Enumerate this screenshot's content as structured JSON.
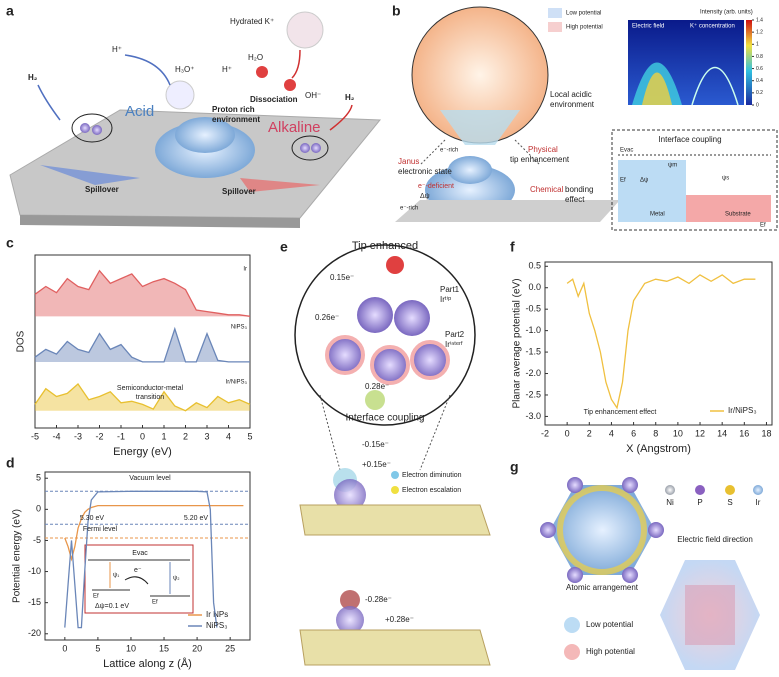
{
  "panels": {
    "labels": [
      "a",
      "b",
      "c",
      "d",
      "e",
      "f",
      "g"
    ],
    "a": {
      "texts": [
        "H₂",
        "H⁺",
        "H₃O⁺",
        "Hydrated K⁺",
        "H₂O",
        "H⁺",
        "Dissociation",
        "OH⁻",
        "Acid",
        "Proton rich",
        "environment",
        "Alkaline",
        "H₂",
        "Spillover",
        "Spillover"
      ]
    },
    "b": {
      "texts": [
        "Low potential",
        "High potential",
        "Local acidic",
        "environment",
        "Physical",
        "tip enhancement",
        "Janus",
        "electronic state",
        "e⁻-rich",
        "e⁻-deficient",
        "Δψ",
        "e⁻-rich",
        "Chemical",
        "bonding",
        "effect",
        "Interface coupling",
        "Metal",
        "Substrate",
        "Electric field",
        "K⁺ concentration",
        "Intensity (arb. units)",
        "Evac",
        "ψm",
        "ψs",
        "Δψ",
        "Ef",
        "Ef"
      ],
      "colorbar": {
        "lim": [
          0,
          1.4
        ],
        "ticks": [
          0,
          0.2,
          0.4,
          0.6,
          0.8,
          1.0,
          1.2,
          1.4
        ]
      }
    },
    "d_inset": {
      "texts": [
        "Evac",
        "e⁻",
        "Δψ=0.1 eV",
        "Ef",
        "Ef",
        "ψ₁",
        "ψ₂"
      ]
    },
    "e": {
      "texts": [
        "Tip enhanced",
        "0.15e⁻",
        "Part1",
        "Irᵗⁱᵖ",
        "0.26e⁻",
        "Part2",
        "Irⁱⁿᵗᵉʳᶠ",
        "0.28e⁻",
        "Interface coupling",
        "-0.15e⁻",
        "+0.15e⁻",
        "Electron diminution",
        "Electron escalation",
        "-0.28e⁻",
        "+0.28e⁻"
      ]
    },
    "g": {
      "texts": [
        "Ni",
        "P",
        "S",
        "Ir",
        "Electric field direction",
        "Atomic arrangement",
        "Low potential",
        "High potential"
      ]
    }
  },
  "chart_data": [
    {
      "type": "area",
      "xlabel": "Energy (eV)",
      "ylabel": "DOS",
      "x": [
        -5,
        -4.5,
        -4,
        -3.5,
        -3,
        -2.5,
        -2,
        -1.5,
        -1,
        -0.5,
        0,
        0.5,
        1,
        1.5,
        2,
        2.5,
        3,
        3.5,
        4,
        4.5,
        5
      ],
      "xlim": [
        -5,
        5
      ],
      "xticks": [
        -5,
        -4,
        -3,
        -2,
        -1,
        0,
        1,
        2,
        3,
        4,
        5
      ],
      "ylim": [
        0,
        11
      ],
      "series": [
        {
          "name": "Ir",
          "color": "#e06060",
          "values": [
            8.5,
            9,
            8.6,
            9.5,
            9,
            8.8,
            10,
            9.2,
            9.5,
            9.8,
            9,
            9.3,
            9.5,
            9.2,
            8.8,
            7.5,
            7.4,
            7.3,
            7.2,
            7.2,
            7.1
          ]
        },
        {
          "name": "NiPS₃",
          "color": "#6a86b8",
          "values": [
            4.5,
            5,
            4.7,
            5.5,
            5,
            4.8,
            6,
            5,
            5.3,
            4.5,
            4.2,
            4.2,
            4.2,
            6.3,
            4.2,
            4.2,
            6,
            4.3,
            4.2,
            4.2,
            4.2
          ]
        },
        {
          "name": "Ir/NiPS₃",
          "color": "#e8c030",
          "values": [
            1.5,
            2.5,
            2,
            2.2,
            2.8,
            1.8,
            2,
            2.3,
            1.6,
            1.7,
            1.5,
            1.2,
            2.3,
            1.4,
            1.1,
            1.6,
            1.3,
            2,
            1.6,
            1.8,
            1.5
          ]
        }
      ],
      "annotations": [
        "Semiconductor-metal",
        "transition"
      ]
    },
    {
      "type": "line",
      "xlabel": "Lattice along z (Å)",
      "ylabel": "Potential energy (eV)",
      "x": [
        0,
        0.5,
        1,
        1.5,
        2,
        2.5,
        3,
        3.5,
        4,
        5,
        10,
        15,
        20,
        21.5,
        22,
        22.5,
        23,
        25,
        27
      ],
      "xlim": [
        -3,
        28
      ],
      "xticks": [
        0,
        5,
        10,
        15,
        20,
        25
      ],
      "ylim": [
        -21,
        6
      ],
      "yticks": [
        5,
        0,
        -5,
        -10,
        -15,
        -20
      ],
      "series": [
        {
          "name": "Ir NPs",
          "color": "#e8964a",
          "values": [
            -4.6,
            -6,
            -8,
            -6,
            -3,
            -1.5,
            -0.5,
            0,
            0.3,
            0.6,
            0.6,
            0.6,
            0.6,
            0.6,
            0.6,
            0.6,
            0.6,
            0.6,
            0.6
          ]
        },
        {
          "name": "NiPS₃",
          "color": "#6a86b8",
          "values": [
            -19,
            -12,
            -5,
            -12,
            -19,
            -19,
            -10,
            -2,
            1.5,
            2.8,
            2.9,
            2.9,
            2.9,
            2.8,
            0,
            -15,
            -19,
            null,
            null
          ]
        }
      ],
      "hlines": [
        2.9,
        -2.4,
        -4.6
      ],
      "legend": "lower right",
      "annotations": [
        "Vacuum level",
        "5.30 eV",
        "5.20 eV",
        "Fermi level"
      ]
    },
    {
      "type": "line",
      "xlabel": "X (Angstrom)",
      "ylabel": "Planar average potential (eV)",
      "x": [
        0,
        0.5,
        1,
        1.5,
        2,
        2.5,
        3,
        3.5,
        4,
        4.5,
        5,
        5.5,
        6,
        7,
        8,
        9,
        10,
        11,
        12,
        13,
        14,
        15,
        16,
        17
      ],
      "xlim": [
        -2,
        18.5
      ],
      "xticks": [
        -2,
        0,
        2,
        4,
        6,
        8,
        10,
        12,
        14,
        16,
        18
      ],
      "ylim": [
        -3.2,
        0.6
      ],
      "yticks": [
        0.5,
        {
          "value": 0,
          "label": "0.0"
        },
        -0.5,
        {
          "value": -1,
          "label": "-1.0"
        },
        -1.5,
        {
          "value": -2,
          "label": "-2.0"
        },
        -2.5,
        {
          "value": -3,
          "label": "-3.0"
        }
      ],
      "series": [
        {
          "name": "Ir/NiPS₃",
          "color": "#f0c040",
          "values": [
            0.1,
            0.2,
            -0.2,
            0.1,
            -0.6,
            -1.0,
            -1.5,
            -2.2,
            -2.6,
            -2.8,
            -2.2,
            -1.0,
            -0.3,
            0.1,
            0.2,
            0.15,
            0.25,
            0.1,
            0.3,
            0.15,
            0.3,
            0.1,
            0.2,
            0.2
          ]
        }
      ],
      "legend": "lower right",
      "annotations": [
        "Tip enhancement effect"
      ]
    }
  ]
}
